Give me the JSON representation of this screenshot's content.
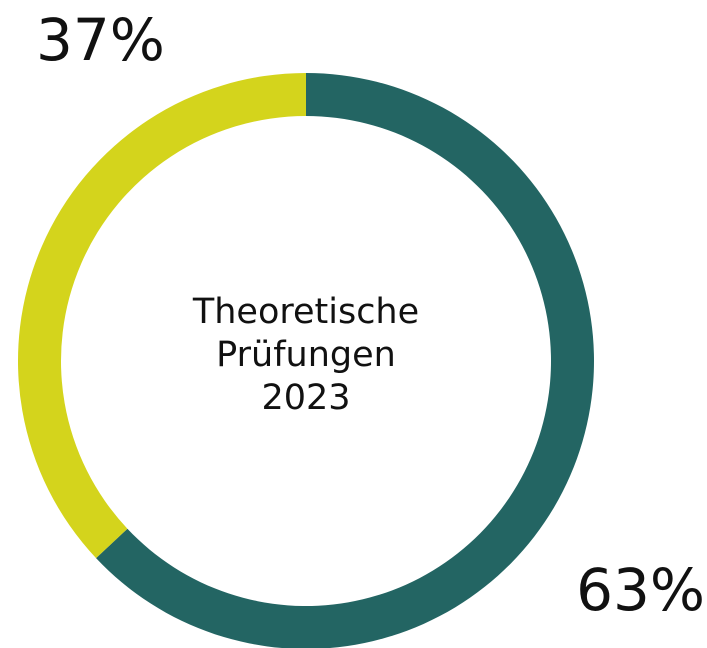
{
  "chart_data": {
    "type": "donut",
    "values": [
      63,
      37
    ],
    "value_labels": [
      "63%",
      "37%"
    ],
    "colors": [
      "#236563",
      "#d4d41c"
    ],
    "center_text": [
      "Theoretische",
      "Prüfungen",
      "2023"
    ]
  }
}
